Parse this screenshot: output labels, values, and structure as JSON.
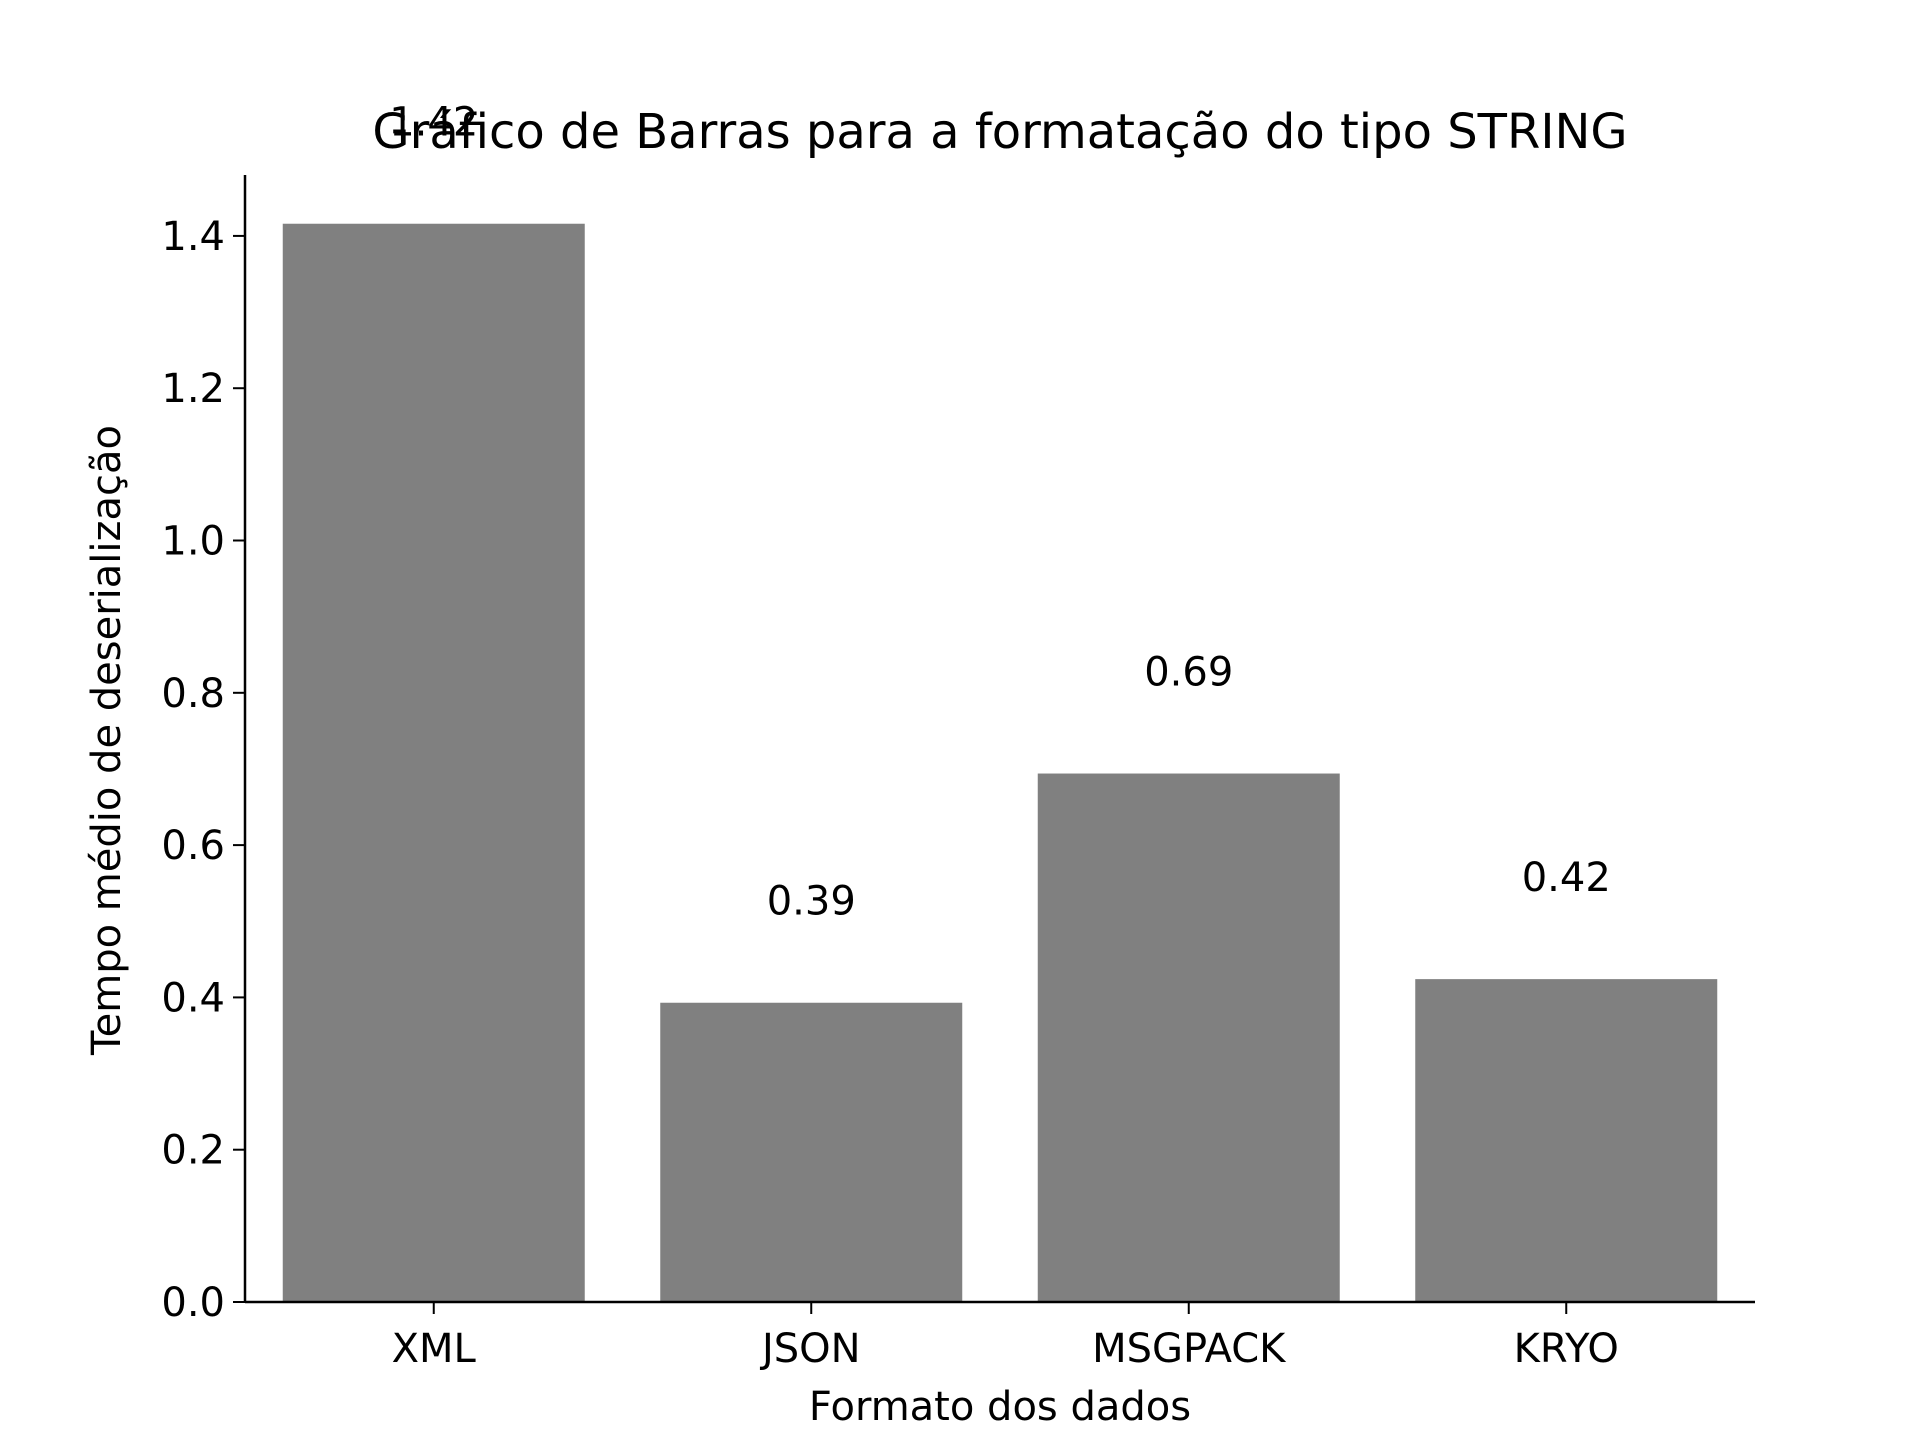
{
  "chart_data": {
    "type": "bar",
    "title": "Gráfico de Barras para a formatação do tipo STRING",
    "xlabel": "Formato dos dados",
    "ylabel": "Tempo médio de deserialização",
    "categories": [
      "XML",
      "JSON",
      "MSGPACK",
      "KRYO"
    ],
    "values": [
      1.416,
      0.393,
      0.694,
      0.424
    ],
    "value_labels": [
      "1.42",
      "0.39",
      "0.69",
      "0.42"
    ],
    "ylim": [
      0,
      1.48
    ],
    "yticks": [
      0.0,
      0.2,
      0.4,
      0.6,
      0.8,
      1.0,
      1.2,
      1.4
    ],
    "ytick_labels": [
      "0.0",
      "0.2",
      "0.4",
      "0.6",
      "0.8",
      "1.0",
      "1.2",
      "1.4"
    ],
    "bar_color": "#808080",
    "grid": false,
    "legend": "none"
  }
}
